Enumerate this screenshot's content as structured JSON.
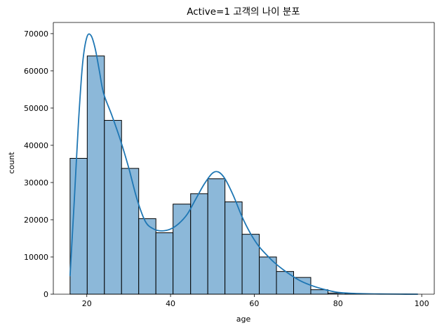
{
  "chart_data": {
    "type": "bar",
    "title": "Active=1 고객의 나이 분포",
    "xlabel": "age",
    "ylabel": "count",
    "xlim": [
      12,
      103
    ],
    "ylim": [
      0,
      73000
    ],
    "x_ticks": [
      20,
      40,
      60,
      80,
      100
    ],
    "y_ticks": [
      0,
      10000,
      20000,
      30000,
      40000,
      50000,
      60000,
      70000
    ],
    "grid": false,
    "legend": "none",
    "colors": {
      "bar_fill": "#8cb8d9",
      "bar_edge": "#000000",
      "kde_line": "#1f77b4"
    },
    "bins": [
      {
        "start": 16.0,
        "end": 20.1,
        "count": 36500
      },
      {
        "start": 20.1,
        "end": 24.2,
        "count": 64000
      },
      {
        "start": 24.2,
        "end": 28.3,
        "count": 46700
      },
      {
        "start": 28.3,
        "end": 32.4,
        "count": 33800
      },
      {
        "start": 32.4,
        "end": 36.5,
        "count": 20300
      },
      {
        "start": 36.5,
        "end": 40.6,
        "count": 16500
      },
      {
        "start": 40.6,
        "end": 44.8,
        "count": 24200
      },
      {
        "start": 44.8,
        "end": 48.9,
        "count": 27000
      },
      {
        "start": 48.9,
        "end": 53.0,
        "count": 31000
      },
      {
        "start": 53.0,
        "end": 57.1,
        "count": 24800
      },
      {
        "start": 57.1,
        "end": 61.2,
        "count": 16100
      },
      {
        "start": 61.2,
        "end": 65.3,
        "count": 10000
      },
      {
        "start": 65.3,
        "end": 69.4,
        "count": 6100
      },
      {
        "start": 69.4,
        "end": 73.5,
        "count": 4500
      },
      {
        "start": 73.5,
        "end": 77.6,
        "count": 1200
      },
      {
        "start": 77.6,
        "end": 81.7,
        "count": 300
      },
      {
        "start": 81.7,
        "end": 85.8,
        "count": 80
      },
      {
        "start": 85.8,
        "end": 89.9,
        "count": 30
      },
      {
        "start": 89.9,
        "end": 94.0,
        "count": 15
      },
      {
        "start": 94.0,
        "end": 99.0,
        "count": 5
      }
    ],
    "kde": {
      "x": [
        16,
        17,
        18,
        19,
        20,
        21,
        22,
        23,
        24,
        26,
        28,
        30,
        32,
        34,
        36,
        38,
        40,
        42,
        44,
        46,
        48,
        50,
        51.5,
        53,
        55,
        57,
        59,
        61,
        63,
        65,
        68,
        71,
        74,
        77,
        80,
        85,
        90,
        95,
        99
      ],
      "y": [
        5000,
        25000,
        46000,
        62000,
        69000,
        69500,
        66000,
        60000,
        54000,
        48000,
        41500,
        34000,
        25500,
        19500,
        17500,
        17000,
        17500,
        19000,
        21500,
        25500,
        29500,
        32500,
        32800,
        31000,
        26500,
        21000,
        16500,
        13000,
        10500,
        8300,
        5700,
        3600,
        2200,
        1200,
        500,
        150,
        60,
        20,
        5
      ]
    }
  }
}
